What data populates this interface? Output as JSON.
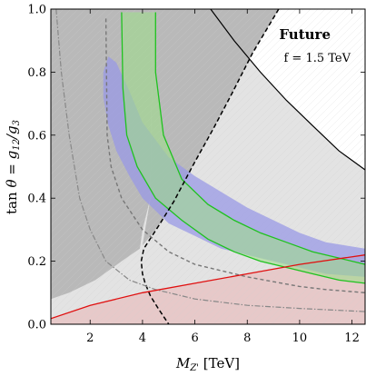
{
  "chart_data": {
    "type": "area",
    "xlabel": "M_{Z'} [TeV]",
    "xlabel_parts": {
      "symbol": "M",
      "sub": "Z'",
      "unit": " [TeV]"
    },
    "ylabel": "tan θ = g12/g3",
    "ylabel_parts": {
      "fn": "tan",
      "theta": "θ = ",
      "g1": "g",
      "sub1": "12",
      "g2": "/g",
      "sub2": "3"
    },
    "xlim": [
      0.5,
      12.5
    ],
    "ylim": [
      0.0,
      1.0
    ],
    "x_ticks": [
      2,
      4,
      6,
      8,
      10,
      12
    ],
    "y_ticks": [
      0.0,
      0.2,
      0.4,
      0.6,
      0.8,
      1.0
    ],
    "y_tick_labels": [
      "0.0",
      "0.2",
      "0.4",
      "0.6",
      "0.8",
      "1.0"
    ],
    "annotations": {
      "title": "Future",
      "subtitle": "f = 1.5 TeV"
    },
    "colors": {
      "dark_gray_region": "#b9b9b9",
      "light_gray_region": "#e3e3e3",
      "blue_band": "#9a9ae6",
      "green_band": "#9fdc8c",
      "red_region": "#e8c4c4",
      "green_line": "#1fc21f",
      "red_line": "#e01010",
      "black_line": "#000000",
      "gray_dashed": "#777777",
      "gray_dashdot": "#888888"
    },
    "series": [
      {
        "role": "region-dark-gray-left",
        "boundary": [
          [
            0.5,
            1.0
          ],
          [
            4.4,
            1.0
          ],
          [
            4.3,
            0.4
          ],
          [
            4.0,
            0.3
          ],
          [
            3.9,
            0.24
          ],
          [
            3.2,
            0.2
          ],
          [
            2.2,
            0.14
          ],
          [
            1.2,
            0.1
          ],
          [
            0.5,
            0.08
          ]
        ]
      },
      {
        "role": "region-dark-gray-upper",
        "boundary": [
          [
            4.4,
            1.0
          ],
          [
            9.2,
            1.0
          ],
          [
            8.2,
            0.86
          ],
          [
            7.4,
            0.73
          ],
          [
            6.7,
            0.62
          ],
          [
            5.9,
            0.5
          ],
          [
            5.2,
            0.39
          ],
          [
            4.6,
            0.31
          ],
          [
            4.0,
            0.25
          ],
          [
            4.3,
            0.4
          ]
        ]
      },
      {
        "role": "black-dashed-boundary",
        "points": [
          [
            9.2,
            1.0
          ],
          [
            8.2,
            0.86
          ],
          [
            7.4,
            0.73
          ],
          [
            6.7,
            0.62
          ],
          [
            5.9,
            0.5
          ],
          [
            5.2,
            0.39
          ],
          [
            4.6,
            0.31
          ],
          [
            4.05,
            0.24
          ],
          [
            3.95,
            0.2
          ],
          [
            4.0,
            0.16
          ],
          [
            4.1,
            0.13
          ],
          [
            4.3,
            0.09
          ],
          [
            4.6,
            0.05
          ],
          [
            5.0,
            0.0
          ]
        ]
      },
      {
        "role": "black-solid-curve",
        "points": [
          [
            6.6,
            1.0
          ],
          [
            7.5,
            0.9
          ],
          [
            8.5,
            0.8
          ],
          [
            9.5,
            0.71
          ],
          [
            10.5,
            0.63
          ],
          [
            11.5,
            0.55
          ],
          [
            12.5,
            0.49
          ]
        ]
      },
      {
        "role": "blue-band",
        "upper": [
          [
            2.5,
            0.8
          ],
          [
            2.7,
            0.85
          ],
          [
            3.0,
            0.83
          ],
          [
            3.5,
            0.74
          ],
          [
            4.0,
            0.64
          ],
          [
            5.0,
            0.53
          ],
          [
            6.0,
            0.47
          ],
          [
            7.0,
            0.42
          ],
          [
            8.0,
            0.37
          ],
          [
            9.0,
            0.33
          ],
          [
            10.0,
            0.29
          ],
          [
            11.0,
            0.26
          ],
          [
            12.5,
            0.24
          ]
        ],
        "lower": [
          [
            12.5,
            0.15
          ],
          [
            11.0,
            0.16
          ],
          [
            10.0,
            0.18
          ],
          [
            9.0,
            0.2
          ],
          [
            8.0,
            0.22
          ],
          [
            7.0,
            0.24
          ],
          [
            6.0,
            0.28
          ],
          [
            5.0,
            0.32
          ],
          [
            4.0,
            0.4
          ],
          [
            3.5,
            0.47
          ],
          [
            3.0,
            0.55
          ],
          [
            2.7,
            0.63
          ],
          [
            2.5,
            0.72
          ]
        ]
      },
      {
        "role": "green-band",
        "upper": [
          [
            4.5,
            0.99
          ],
          [
            4.5,
            0.8
          ],
          [
            4.8,
            0.6
          ],
          [
            5.5,
            0.46
          ],
          [
            6.5,
            0.38
          ],
          [
            7.5,
            0.33
          ],
          [
            8.5,
            0.29
          ],
          [
            9.5,
            0.26
          ],
          [
            10.5,
            0.23
          ],
          [
            11.5,
            0.21
          ],
          [
            12.5,
            0.19
          ]
        ],
        "lower": [
          [
            12.5,
            0.13
          ],
          [
            11.5,
            0.14
          ],
          [
            10.5,
            0.16
          ],
          [
            9.5,
            0.18
          ],
          [
            8.5,
            0.2
          ],
          [
            7.5,
            0.23
          ],
          [
            6.5,
            0.27
          ],
          [
            5.5,
            0.33
          ],
          [
            4.5,
            0.4
          ],
          [
            3.8,
            0.5
          ],
          [
            3.4,
            0.6
          ],
          [
            3.25,
            0.75
          ],
          [
            3.2,
            0.99
          ]
        ]
      },
      {
        "role": "red-line",
        "points": [
          [
            0.5,
            0.018
          ],
          [
            2.0,
            0.06
          ],
          [
            4.0,
            0.1
          ],
          [
            6.0,
            0.13
          ],
          [
            8.0,
            0.16
          ],
          [
            10.0,
            0.19
          ],
          [
            12.5,
            0.22
          ]
        ]
      },
      {
        "role": "gray-dashed-curve",
        "points": [
          [
            2.6,
            0.97
          ],
          [
            2.65,
            0.6
          ],
          [
            2.8,
            0.5
          ],
          [
            3.2,
            0.4
          ],
          [
            4.0,
            0.3
          ],
          [
            5.0,
            0.23
          ],
          [
            6.0,
            0.19
          ],
          [
            7.0,
            0.17
          ],
          [
            8.0,
            0.15
          ],
          [
            9.0,
            0.135
          ],
          [
            10.0,
            0.12
          ],
          [
            11.0,
            0.11
          ],
          [
            12.5,
            0.1
          ]
        ]
      },
      {
        "role": "gray-dashdot-curve",
        "points": [
          [
            0.7,
            1.0
          ],
          [
            0.9,
            0.8
          ],
          [
            1.2,
            0.6
          ],
          [
            1.6,
            0.4
          ],
          [
            2.0,
            0.3
          ],
          [
            2.6,
            0.2
          ],
          [
            3.5,
            0.14
          ],
          [
            4.5,
            0.11
          ],
          [
            6.0,
            0.08
          ],
          [
            8.0,
            0.06
          ],
          [
            10.0,
            0.05
          ],
          [
            12.5,
            0.04
          ]
        ]
      }
    ]
  }
}
